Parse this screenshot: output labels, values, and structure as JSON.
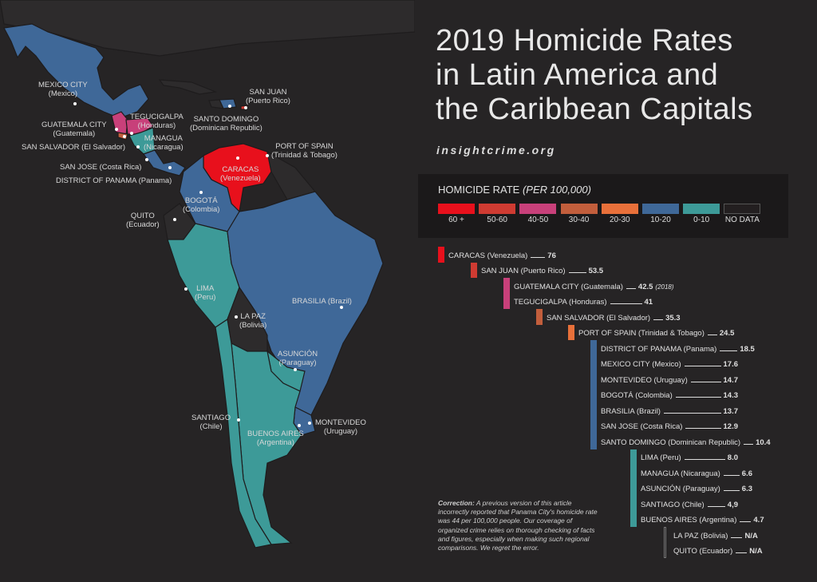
{
  "title": [
    "2019 Homicide Rates",
    "in Latin America and",
    "the Caribbean Capitals"
  ],
  "site": "insightcrime.org",
  "legend": {
    "title": "HOMICIDE RATE",
    "subtitle": "(PER 100,000)",
    "items": [
      {
        "label": "60 +",
        "color": "#e8101c"
      },
      {
        "label": "50-60",
        "color": "#cf3b32"
      },
      {
        "label": "40-50",
        "color": "#c8407a"
      },
      {
        "label": "30-40",
        "color": "#c25e3c"
      },
      {
        "label": "20-30",
        "color": "#e8703a"
      },
      {
        "label": "10-20",
        "color": "#3f6898"
      },
      {
        "label": "0-10",
        "color": "#3d9a98"
      },
      {
        "label": "NO DATA",
        "color": "#231f20"
      }
    ]
  },
  "ranking": [
    {
      "city": "CARACAS (Venezuela)",
      "value": "76"
    },
    {
      "city": "SAN JUAN (Puerto Rico)",
      "value": "53.5"
    },
    {
      "city": "GUATEMALA CITY (Guatemala)",
      "value": "42.5",
      "note": "(2018)"
    },
    {
      "city": "TEGUCIGALPA (Honduras)",
      "value": "41"
    },
    {
      "city": "SAN SALVADOR (El Salvador)",
      "value": "35.3"
    },
    {
      "city": "PORT OF SPAIN (Trinidad & Tobago)",
      "value": "24.5"
    },
    {
      "city": "DISTRICT OF PANAMA (Panama)",
      "value": "18.5"
    },
    {
      "city": "MEXICO CITY (Mexico)",
      "value": "17.6"
    },
    {
      "city": "MONTEVIDEO (Uruguay)",
      "value": "14.7"
    },
    {
      "city": "BOGOTÁ (Colombia)",
      "value": "14.3"
    },
    {
      "city": "BRASILIA (Brazil)",
      "value": "13.7"
    },
    {
      "city": "SAN JOSE (Costa Rica)",
      "value": "12.9"
    },
    {
      "city": "SANTO DOMINGO (Dominican Republic)",
      "value": "10.4"
    },
    {
      "city": "LIMA (Peru)",
      "value": "8.0"
    },
    {
      "city": "MANAGUA (Nicaragua)",
      "value": "6.6"
    },
    {
      "city": "ASUNCIÓN (Paraguay)",
      "value": "6.3"
    },
    {
      "city": "SANTIAGO (Chile)",
      "value": "4,9"
    },
    {
      "city": "BUENOS AIRES (Argentina)",
      "value": "4.7"
    },
    {
      "city": "LA PAZ (Bolivia)",
      "value": "N/A"
    },
    {
      "city": "QUITO (Ecuador)",
      "value": "N/A"
    }
  ],
  "map_labels": {
    "mexico": [
      "MEXICO CITY",
      "(Mexico)"
    ],
    "guatemala": [
      "GUATEMALA CITY",
      "(Guatemala)"
    ],
    "tegucigalpa": [
      "TEGUCIGALPA",
      "(Honduras)"
    ],
    "managua": [
      "MANAGUA",
      "(Nicaragua)"
    ],
    "san_salvador": "SAN SALVADOR (El Salvador)",
    "san_jose": "SAN JOSE (Costa Rica)",
    "panama": "DISTRICT OF PANAMA (Panama)",
    "san_juan": [
      "SAN JUAN",
      "(Puerto Rico)"
    ],
    "santo_domingo": [
      "SANTO DOMINGO",
      "(Dominican Republic)"
    ],
    "port_of_spain": [
      "PORT OF SPAIN",
      "(Trinidad & Tobago)"
    ],
    "caracas": [
      "CARACAS",
      "(Venezuela)"
    ],
    "bogota": [
      "BOGOTÁ",
      "(Colombia)"
    ],
    "quito": [
      "QUITO",
      "(Ecuador)"
    ],
    "lima": [
      "LIMA",
      "(Peru)"
    ],
    "la_paz": [
      "LA PAZ",
      "(Bolivia)"
    ],
    "brasilia": "BRASILIA (Brazil)",
    "asuncion": [
      "ASUNCIÓN",
      "(Paraguay)"
    ],
    "santiago": [
      "SANTIAGO",
      "(Chile)"
    ],
    "buenos_aires": [
      "BUENOS AIRES",
      "(Argentina)"
    ],
    "montevideo": [
      "MONTEVIDEO",
      "(Uruguay)"
    ]
  },
  "correction": {
    "lead": "Correction:",
    "text": " A previous version of this article incorrectly reported that Panama City's homicide rate was 44 per 100,000 people. Our coverage of organized crime relies on thorough checking of facts and figures, especially when making such regional comparisons. We regret the error."
  }
}
